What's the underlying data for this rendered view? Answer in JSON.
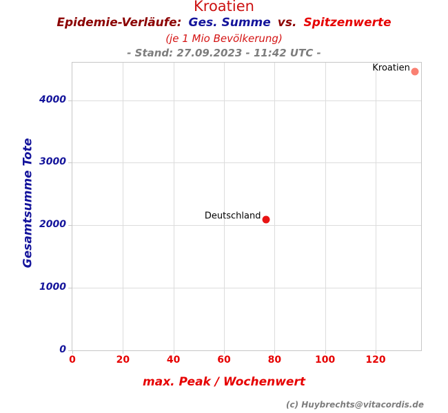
{
  "header": {
    "title": "Kroatien",
    "subtitle_prefix": "Epidemie-Verläufe:",
    "subtitle_series1": "Ges. Summe",
    "subtitle_vs": "vs.",
    "subtitle_series2": "Spitzenwerte",
    "unit_note": "(je 1 Mio Bevölkerung)",
    "stand": "- Stand: 27.09.2023 - 11:42 UTC -"
  },
  "footer": {
    "credit": "(c) Huybrechts@vitacordis.de"
  },
  "colors": {
    "title_red": "#cc1111",
    "dark_red": "#8b0000",
    "navy": "#14149b",
    "bright_red": "#e60000",
    "unit_red": "#d41414",
    "gray": "#7d7d7d",
    "grid": "#dcdcdc",
    "border": "#c6c6c6",
    "label_black": "#000000"
  },
  "chart_data": {
    "type": "scatter",
    "title": "Kroatien",
    "subtitle": "Epidemie-Verläufe: Ges. Summe vs. Spitzenwerte (je 1 Mio Bevölkerung)",
    "stand": "- Stand: 27.09.2023 - 11:42 UTC -",
    "xlabel": "max. Peak / Wochenwert",
    "ylabel": "Gesamtsumme Tote",
    "xlim": [
      0,
      138
    ],
    "ylim": [
      0,
      4600
    ],
    "xticks": [
      0,
      20,
      40,
      60,
      80,
      100,
      120
    ],
    "yticks": [
      0,
      1000,
      2000,
      3000,
      4000
    ],
    "grid": true,
    "legend": "none",
    "points": [
      {
        "label": "Deutschland",
        "x": 76.5,
        "y": 2090,
        "color": "#e81414"
      },
      {
        "label": "Kroatien",
        "x": 135.5,
        "y": 4455,
        "color": "#fa8072"
      }
    ]
  }
}
